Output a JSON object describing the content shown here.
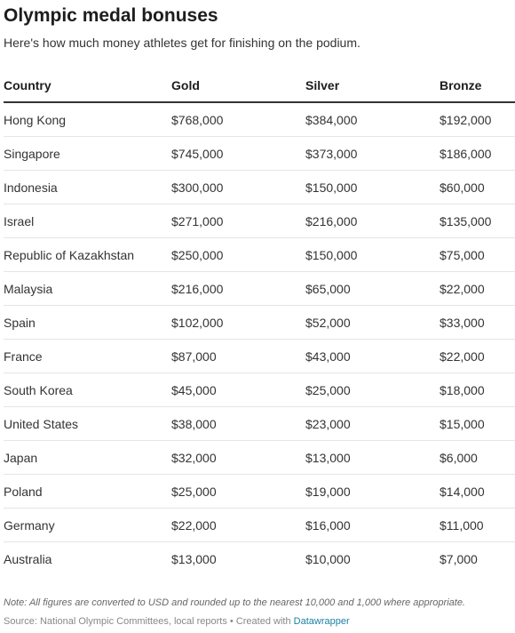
{
  "title": "Olympic medal bonuses",
  "subtitle": "Here's how much money athletes get for finishing on the podium.",
  "chart_data": {
    "type": "table",
    "columns": [
      "Country",
      "Gold",
      "Silver",
      "Bronze"
    ],
    "rows": [
      [
        "Hong Kong",
        "$768,000",
        "$384,000",
        "$192,000"
      ],
      [
        "Singapore",
        "$745,000",
        "$373,000",
        "$186,000"
      ],
      [
        "Indonesia",
        "$300,000",
        "$150,000",
        "$60,000"
      ],
      [
        "Israel",
        "$271,000",
        "$216,000",
        "$135,000"
      ],
      [
        "Republic of Kazakhstan",
        "$250,000",
        "$150,000",
        "$75,000"
      ],
      [
        "Malaysia",
        "$216,000",
        "$65,000",
        "$22,000"
      ],
      [
        "Spain",
        "$102,000",
        "$52,000",
        "$33,000"
      ],
      [
        "France",
        "$87,000",
        "$43,000",
        "$22,000"
      ],
      [
        "South Korea",
        "$45,000",
        "$25,000",
        "$18,000"
      ],
      [
        "United States",
        "$38,000",
        "$23,000",
        "$15,000"
      ],
      [
        "Japan",
        "$32,000",
        "$13,000",
        "$6,000"
      ],
      [
        "Poland",
        "$25,000",
        "$19,000",
        "$14,000"
      ],
      [
        "Germany",
        "$22,000",
        "$16,000",
        "$11,000"
      ],
      [
        "Australia",
        "$13,000",
        "$10,000",
        "$7,000"
      ]
    ]
  },
  "footer": {
    "note": "Note: All figures are converted to USD and rounded up to the nearest 10,000 and 1,000 where appropriate.",
    "source_prefix": "Source: National Olympic Committees, local reports • Created with ",
    "source_link": "Datawrapper"
  },
  "colors": {
    "text": "#1d1d1d",
    "rule": "#333333",
    "row_divider": "#e5e5e5",
    "link": "#1d81a2"
  }
}
